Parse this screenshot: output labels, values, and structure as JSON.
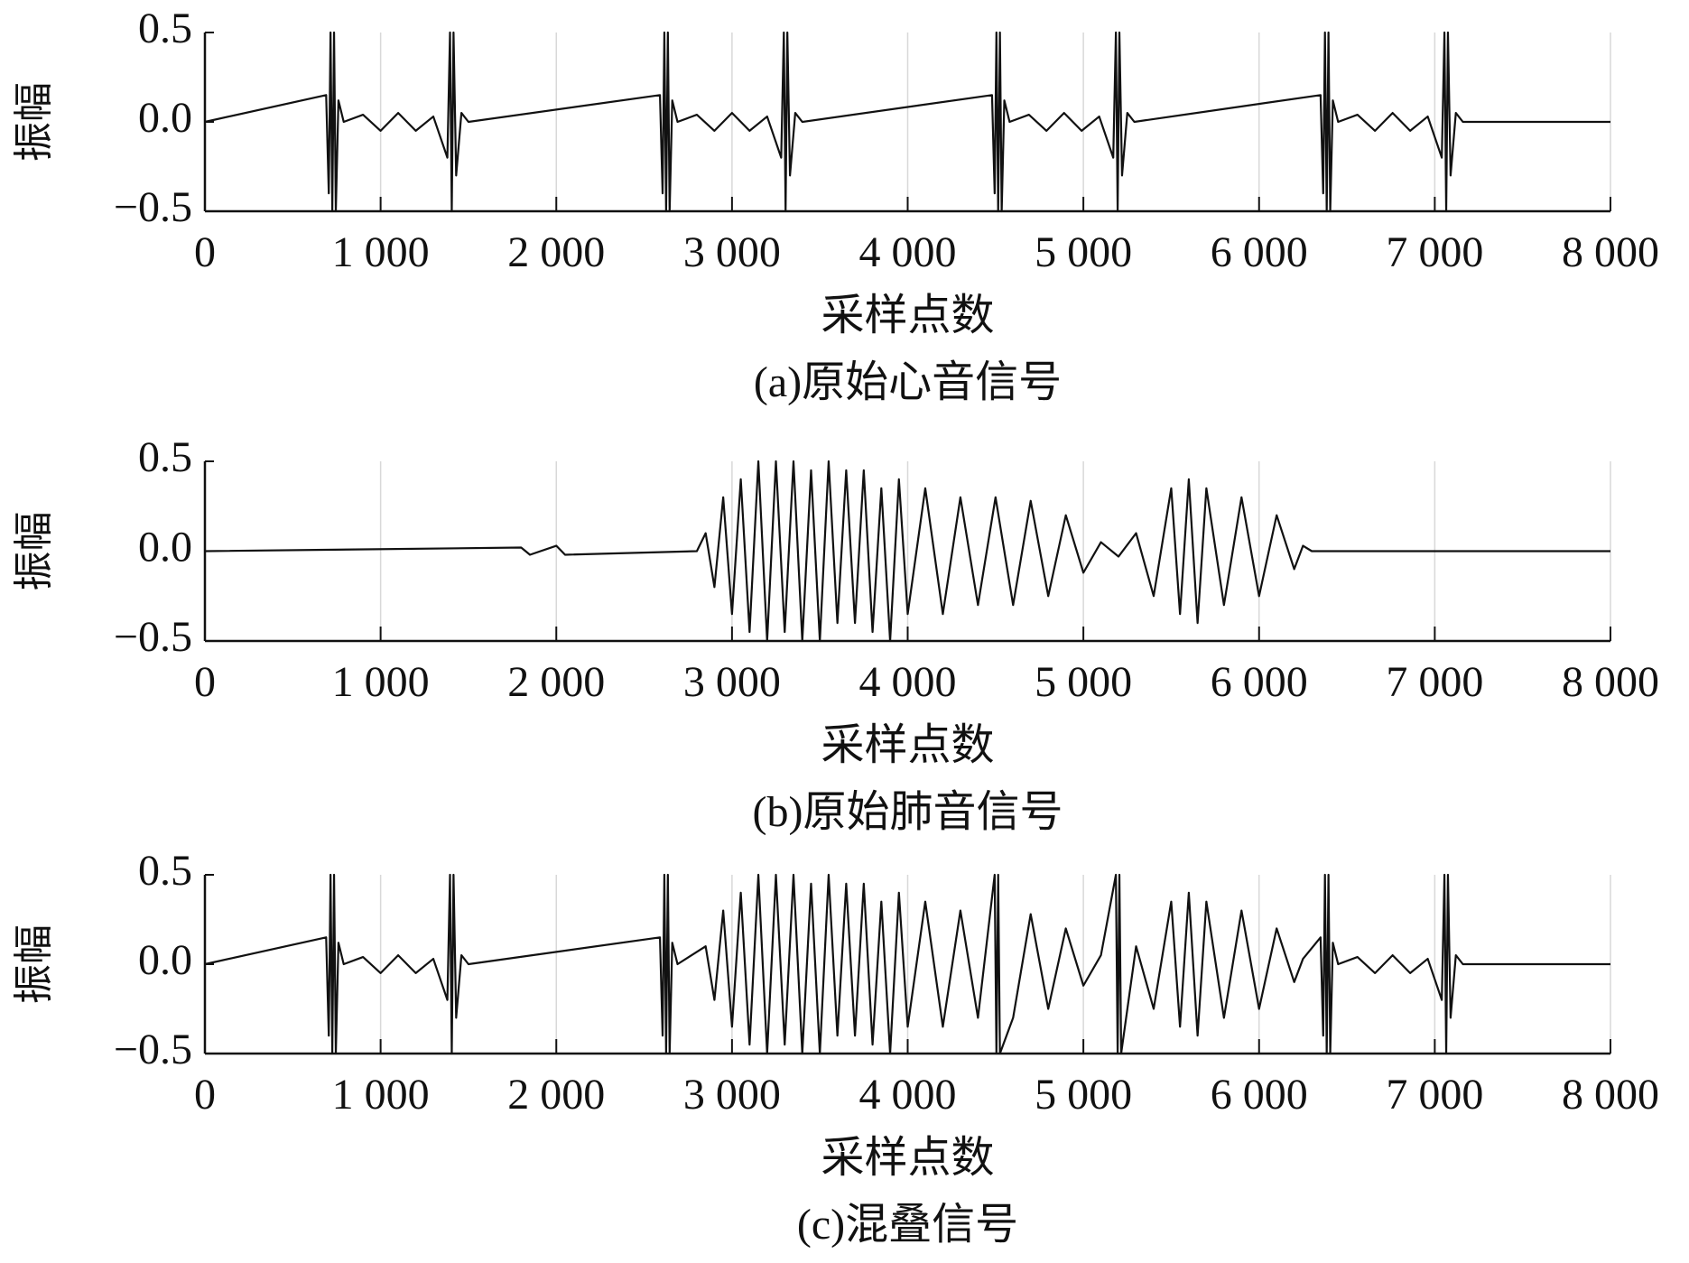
{
  "chart_data": [
    {
      "type": "line",
      "ylabel": "振幅",
      "xlabel": "采样点数",
      "caption": "(a)原始心音信号",
      "color": "#111111",
      "grid": true,
      "xlim": [
        0,
        8000
      ],
      "ylim": [
        -0.5,
        0.5
      ],
      "xticks": [
        0,
        {
          "value": 1000,
          "label": "1 000"
        },
        {
          "value": 2000,
          "label": "2 000"
        },
        {
          "value": 3000,
          "label": "3 000"
        },
        {
          "value": 4000,
          "label": "4 000"
        },
        {
          "value": 5000,
          "label": "5 000"
        },
        {
          "value": 6000,
          "label": "6 000"
        },
        {
          "value": 7000,
          "label": "7 000"
        },
        {
          "value": 8000,
          "label": "8 000"
        }
      ],
      "yticks": [
        {
          "value": -0.5,
          "label": "−0.5"
        },
        {
          "value": 0,
          "label": "0.0"
        },
        0.5
      ],
      "x": [
        0,
        690,
        705,
        715,
        725,
        735,
        745,
        760,
        790,
        900,
        1000,
        1100,
        1200,
        1300,
        1380,
        1395,
        1405,
        1415,
        1430,
        1460,
        1500,
        2590,
        2605,
        2615,
        2625,
        2635,
        2645,
        2660,
        2690,
        2800,
        2900,
        3000,
        3100,
        3200,
        3280,
        3295,
        3305,
        3315,
        3330,
        3360,
        3400,
        4480,
        4495,
        4505,
        4515,
        4525,
        4535,
        4550,
        4580,
        4690,
        4790,
        4890,
        4990,
        5090,
        5170,
        5185,
        5195,
        5205,
        5220,
        5250,
        5290,
        6350,
        6365,
        6375,
        6385,
        6395,
        6405,
        6420,
        6450,
        6560,
        6660,
        6760,
        6860,
        6960,
        7040,
        7055,
        7065,
        7075,
        7090,
        7120,
        7160,
        8000
      ],
      "values": [
        0,
        0.15,
        -0.4,
        0.5,
        -0.5,
        0.5,
        -0.5,
        0.12,
        0,
        0.04,
        -0.05,
        0.05,
        -0.05,
        0.03,
        -0.2,
        0.5,
        -0.5,
        0.5,
        -0.3,
        0.05,
        0,
        0.15,
        -0.4,
        0.5,
        -0.5,
        0.5,
        -0.5,
        0.12,
        0,
        0.04,
        -0.05,
        0.05,
        -0.05,
        0.03,
        -0.2,
        0.5,
        -0.5,
        0.5,
        -0.3,
        0.05,
        0,
        0.15,
        -0.4,
        0.5,
        -0.5,
        0.5,
        -0.5,
        0.12,
        0,
        0.04,
        -0.05,
        0.05,
        -0.05,
        0.03,
        -0.2,
        0.5,
        -0.5,
        0.5,
        -0.3,
        0.05,
        0,
        0.15,
        -0.4,
        0.5,
        -0.5,
        0.5,
        -0.5,
        0.12,
        0,
        0.04,
        -0.05,
        0.05,
        -0.05,
        0.03,
        -0.2,
        0.5,
        -0.5,
        0.5,
        -0.3,
        0.05,
        0,
        0
      ]
    },
    {
      "type": "line",
      "ylabel": "振幅",
      "xlabel": "采样点数",
      "caption": "(b)原始肺音信号",
      "color": "#111111",
      "grid": true,
      "xlim": [
        0,
        8000
      ],
      "ylim": [
        -0.5,
        0.5
      ],
      "xticks": [
        0,
        {
          "value": 1000,
          "label": "1 000"
        },
        {
          "value": 2000,
          "label": "2 000"
        },
        {
          "value": 3000,
          "label": "3 000"
        },
        {
          "value": 4000,
          "label": "4 000"
        },
        {
          "value": 5000,
          "label": "5 000"
        },
        {
          "value": 6000,
          "label": "6 000"
        },
        {
          "value": 7000,
          "label": "7 000"
        },
        {
          "value": 8000,
          "label": "8 000"
        }
      ],
      "yticks": [
        {
          "value": -0.5,
          "label": "−0.5"
        },
        {
          "value": 0,
          "label": "0.0"
        },
        0.5
      ],
      "x": [
        0,
        1800,
        1850,
        2000,
        2050,
        2800,
        2850,
        2900,
        2950,
        3000,
        3050,
        3100,
        3150,
        3200,
        3250,
        3300,
        3350,
        3400,
        3450,
        3500,
        3550,
        3600,
        3650,
        3700,
        3750,
        3800,
        3850,
        3900,
        3950,
        4000,
        4100,
        4200,
        4300,
        4400,
        4500,
        4600,
        4700,
        4800,
        4900,
        5000,
        5100,
        5200,
        5300,
        5400,
        5500,
        5550,
        5600,
        5650,
        5700,
        5800,
        5900,
        6000,
        6100,
        6200,
        6250,
        6300,
        8000
      ],
      "values": [
        0,
        0.02,
        -0.02,
        0.03,
        -0.02,
        0,
        0.1,
        -0.2,
        0.3,
        -0.35,
        0.4,
        -0.45,
        0.5,
        -0.5,
        0.5,
        -0.45,
        0.5,
        -0.5,
        0.45,
        -0.5,
        0.5,
        -0.4,
        0.45,
        -0.4,
        0.45,
        -0.45,
        0.35,
        -0.5,
        0.4,
        -0.35,
        0.35,
        -0.35,
        0.3,
        -0.3,
        0.3,
        -0.3,
        0.28,
        -0.25,
        0.2,
        -0.12,
        0.05,
        -0.03,
        0.1,
        -0.25,
        0.35,
        -0.35,
        0.4,
        -0.4,
        0.35,
        -0.3,
        0.3,
        -0.25,
        0.2,
        -0.1,
        0.03,
        0,
        0
      ]
    },
    {
      "type": "line",
      "ylabel": "振幅",
      "xlabel": "采样点数",
      "caption": "(c)混叠信号",
      "color": "#111111",
      "grid": true,
      "xlim": [
        0,
        8000
      ],
      "ylim": [
        -0.5,
        0.5
      ],
      "xticks": [
        0,
        {
          "value": 1000,
          "label": "1 000"
        },
        {
          "value": 2000,
          "label": "2 000"
        },
        {
          "value": 3000,
          "label": "3 000"
        },
        {
          "value": 4000,
          "label": "4 000"
        },
        {
          "value": 5000,
          "label": "5 000"
        },
        {
          "value": 6000,
          "label": "6 000"
        },
        {
          "value": 7000,
          "label": "7 000"
        },
        {
          "value": 8000,
          "label": "8 000"
        }
      ],
      "yticks": [
        {
          "value": -0.5,
          "label": "−0.5"
        },
        {
          "value": 0,
          "label": "0.0"
        },
        0.5
      ],
      "x": [
        0,
        690,
        705,
        715,
        725,
        735,
        745,
        760,
        790,
        900,
        1000,
        1100,
        1200,
        1300,
        1380,
        1395,
        1405,
        1415,
        1430,
        1460,
        1500,
        2590,
        2605,
        2615,
        2625,
        2635,
        2645,
        2660,
        2690,
        2850,
        2900,
        2950,
        3000,
        3050,
        3100,
        3150,
        3200,
        3250,
        3300,
        3350,
        3400,
        3450,
        3500,
        3550,
        3600,
        3650,
        3700,
        3750,
        3800,
        3850,
        3900,
        3950,
        4000,
        4100,
        4200,
        4300,
        4400,
        4495,
        4505,
        4515,
        4525,
        4600,
        4700,
        4800,
        4900,
        5000,
        5100,
        5185,
        5195,
        5205,
        5215,
        5300,
        5400,
        5500,
        5550,
        5600,
        5650,
        5700,
        5800,
        5900,
        6000,
        6100,
        6200,
        6250,
        6350,
        6365,
        6375,
        6385,
        6395,
        6405,
        6420,
        6450,
        6560,
        6660,
        6760,
        6860,
        6960,
        7040,
        7055,
        7065,
        7075,
        7090,
        7120,
        7160,
        8000
      ],
      "values": [
        0,
        0.15,
        -0.4,
        0.5,
        -0.5,
        0.5,
        -0.5,
        0.12,
        0,
        0.04,
        -0.05,
        0.05,
        -0.05,
        0.03,
        -0.2,
        0.5,
        -0.5,
        0.5,
        -0.3,
        0.05,
        0,
        0.15,
        -0.4,
        0.5,
        -0.5,
        0.5,
        -0.5,
        0.12,
        0,
        0.1,
        -0.2,
        0.3,
        -0.35,
        0.4,
        -0.45,
        0.5,
        -0.5,
        0.5,
        -0.45,
        0.5,
        -0.5,
        0.45,
        -0.5,
        0.5,
        -0.4,
        0.45,
        -0.4,
        0.45,
        -0.45,
        0.35,
        -0.5,
        0.4,
        -0.35,
        0.35,
        -0.35,
        0.3,
        -0.3,
        0.5,
        -0.5,
        0.5,
        -0.5,
        -0.3,
        0.28,
        -0.25,
        0.2,
        -0.12,
        0.05,
        0.5,
        -0.5,
        0.5,
        -0.5,
        0.1,
        -0.25,
        0.35,
        -0.35,
        0.4,
        -0.4,
        0.35,
        -0.3,
        0.3,
        -0.25,
        0.2,
        -0.1,
        0.03,
        0.15,
        -0.4,
        0.5,
        -0.5,
        0.5,
        -0.5,
        0.12,
        0,
        0.04,
        -0.05,
        0.05,
        -0.05,
        0.03,
        -0.2,
        0.5,
        -0.5,
        0.5,
        -0.3,
        0.05,
        0,
        0
      ]
    }
  ]
}
